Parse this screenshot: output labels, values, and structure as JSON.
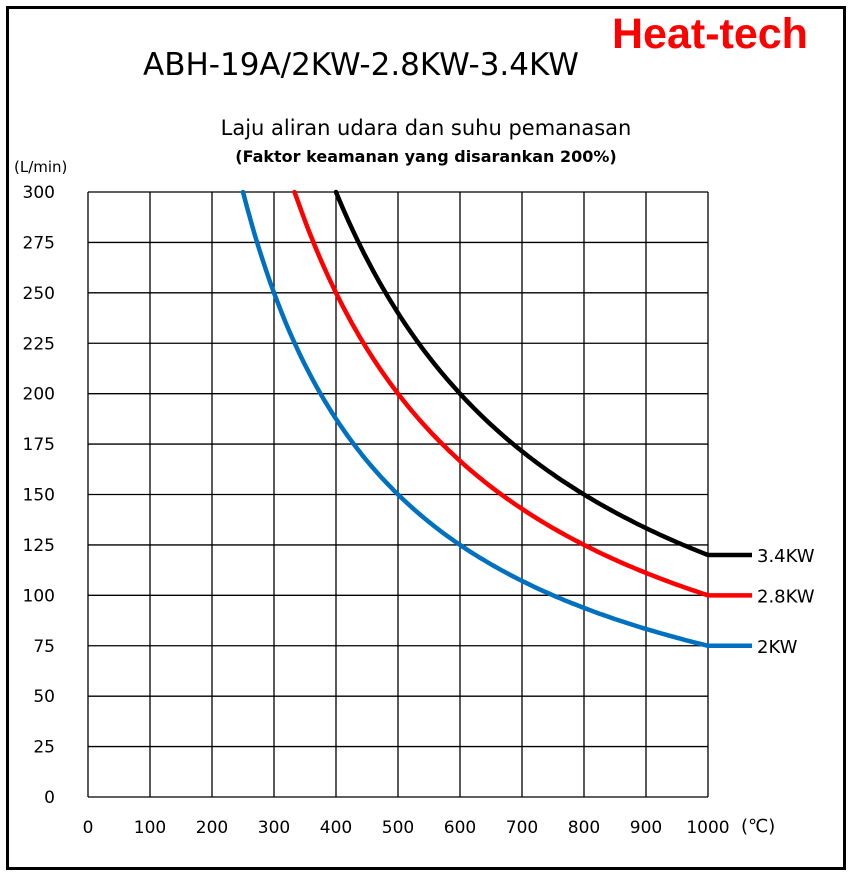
{
  "brand": {
    "text": "Heat-tech",
    "color": "#ff0000"
  },
  "chart_data": {
    "type": "line",
    "title": "ABH-19A/2KW-2.8KW-3.4KW",
    "subtitle": "Laju aliran udara dan suhu pemanasan",
    "note": "(Faktor keamanan yang disarankan 200%)",
    "ylabel": "(L/min)",
    "xlabel": "(℃)",
    "xlim": [
      0,
      1000
    ],
    "ylim": [
      0,
      300
    ],
    "x_ticks": [
      0,
      100,
      200,
      300,
      400,
      500,
      600,
      700,
      800,
      900,
      1000
    ],
    "y_ticks": [
      0,
      25,
      50,
      75,
      100,
      125,
      150,
      175,
      200,
      225,
      250,
      275,
      300
    ],
    "grid": true,
    "series": [
      {
        "name": "3.4KW",
        "color": "#000000",
        "x": [
          400,
          450,
          500,
          550,
          600,
          650,
          700,
          750,
          800,
          850,
          900,
          950,
          1000
        ],
        "values": [
          300,
          266.7,
          240,
          218.2,
          200,
          184.6,
          171.4,
          160,
          150,
          141.2,
          133.3,
          126.3,
          120
        ]
      },
      {
        "name": "2.8KW",
        "color": "#ff0000",
        "x": [
          333,
          350,
          400,
          450,
          500,
          550,
          600,
          650,
          700,
          750,
          800,
          850,
          900,
          950,
          1000
        ],
        "values": [
          300,
          285.7,
          250,
          222.2,
          200,
          181.8,
          166.7,
          153.8,
          142.9,
          133.3,
          125,
          117.6,
          111.1,
          105.3,
          100
        ]
      },
      {
        "name": "2KW",
        "color": "#0070c0",
        "x": [
          250,
          275,
          300,
          350,
          400,
          450,
          500,
          550,
          600,
          650,
          700,
          750,
          800,
          850,
          900,
          950,
          1000
        ],
        "values": [
          300,
          272.7,
          250,
          214.3,
          187.5,
          166.7,
          150,
          136.4,
          125,
          115.4,
          107.1,
          100,
          93.8,
          88.2,
          83.3,
          78.9,
          75
        ]
      }
    ],
    "legend_placement": "right"
  }
}
